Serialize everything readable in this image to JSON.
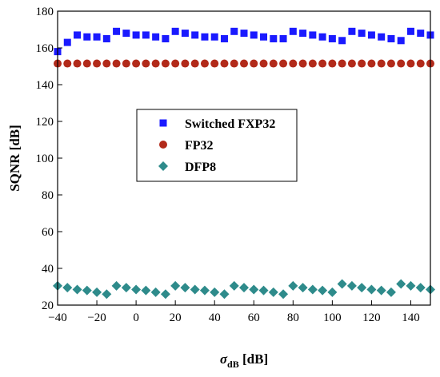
{
  "chart_data": {
    "type": "scatter",
    "xlabel_main": "σ",
    "xlabel_sub": "dB",
    "xlabel_unit": " [dB]",
    "ylabel": "SQNR [dB]",
    "xlim": [
      -40,
      150
    ],
    "ylim": [
      20,
      180
    ],
    "x_ticks": [
      -40,
      -20,
      0,
      20,
      40,
      60,
      80,
      100,
      120,
      140
    ],
    "x_tick_labels": [
      "−40",
      "−20",
      "0",
      "20",
      "40",
      "60",
      "80",
      "100",
      "120",
      "140"
    ],
    "y_ticks": [
      20,
      40,
      60,
      80,
      100,
      120,
      140,
      160,
      180
    ],
    "y_tick_labels": [
      "20",
      "40",
      "60",
      "80",
      "100",
      "120",
      "140",
      "160",
      "180"
    ],
    "grid": false,
    "legend_position": "center-left",
    "series": [
      {
        "name": "Switched FXP32",
        "marker": "square",
        "color": "#1a1aff",
        "x": [
          -40,
          -35,
          -30,
          -25,
          -20,
          -15,
          -10,
          -5,
          0,
          5,
          10,
          15,
          20,
          25,
          30,
          35,
          40,
          45,
          50,
          55,
          60,
          65,
          70,
          75,
          80,
          85,
          90,
          95,
          100,
          105,
          110,
          115,
          120,
          125,
          130,
          135,
          140,
          145,
          150
        ],
        "y": [
          158,
          163,
          167,
          166,
          166,
          165,
          169,
          168,
          167,
          167,
          166,
          165,
          169,
          168,
          167,
          166,
          166,
          165,
          169,
          168,
          167,
          166,
          165,
          165,
          169,
          168,
          167,
          166,
          165,
          164,
          169,
          168,
          167,
          166,
          165,
          164,
          169,
          168,
          167
        ]
      },
      {
        "name": "FP32",
        "marker": "circle",
        "color": "#b22a1a",
        "x": [
          -40,
          -35,
          -30,
          -25,
          -20,
          -15,
          -10,
          -5,
          0,
          5,
          10,
          15,
          20,
          25,
          30,
          35,
          40,
          45,
          50,
          55,
          60,
          65,
          70,
          75,
          80,
          85,
          90,
          95,
          100,
          105,
          110,
          115,
          120,
          125,
          130,
          135,
          140,
          145,
          150
        ],
        "y": [
          151.5,
          151.5,
          151.5,
          151.5,
          151.5,
          151.5,
          151.5,
          151.5,
          151.5,
          151.5,
          151.5,
          151.5,
          151.5,
          151.5,
          151.5,
          151.5,
          151.5,
          151.5,
          151.5,
          151.5,
          151.5,
          151.5,
          151.5,
          151.5,
          151.5,
          151.5,
          151.5,
          151.5,
          151.5,
          151.5,
          151.5,
          151.5,
          151.5,
          151.5,
          151.5,
          151.5,
          151.5,
          151.5,
          151.5
        ]
      },
      {
        "name": "DFP8",
        "marker": "diamond",
        "color": "#2e8b8b",
        "x": [
          -40,
          -35,
          -30,
          -25,
          -20,
          -15,
          -10,
          -5,
          0,
          5,
          10,
          15,
          20,
          25,
          30,
          35,
          40,
          45,
          50,
          55,
          60,
          65,
          70,
          75,
          80,
          85,
          90,
          95,
          100,
          105,
          110,
          115,
          120,
          125,
          130,
          135,
          140,
          145,
          150
        ],
        "y": [
          30.5,
          29.5,
          28.5,
          28,
          27,
          26,
          30.5,
          29.5,
          28.5,
          28,
          27,
          26,
          30.5,
          29.5,
          28.5,
          28,
          27,
          26,
          30.5,
          29.5,
          28.5,
          28,
          27,
          26,
          30.5,
          29.5,
          28.5,
          28,
          27,
          31.5,
          30.5,
          29.5,
          28.5,
          28,
          27,
          31.5,
          30.5,
          29.5,
          28.5
        ]
      }
    ]
  }
}
